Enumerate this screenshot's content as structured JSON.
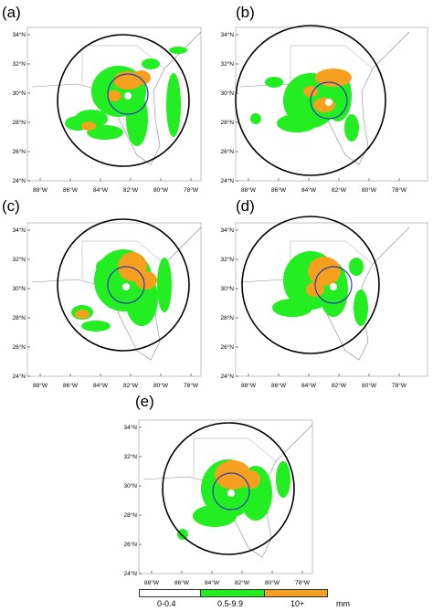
{
  "panels": [
    {
      "label": "(a)"
    },
    {
      "label": "(b)"
    },
    {
      "label": "(c)"
    },
    {
      "label": "(d)"
    },
    {
      "label": "(e)"
    }
  ],
  "lat_ticks": [
    "34°N",
    "32°N",
    "30°N",
    "28°N",
    "26°N",
    "24°N"
  ],
  "lon_ticks": [
    "88°W",
    "86°W",
    "84°W",
    "82°W",
    "80°W",
    "78°W"
  ],
  "legend": {
    "bins": [
      {
        "label": "0-0.4",
        "color": "#ffffff"
      },
      {
        "label": "0.5-9.9",
        "color": "#22ee22"
      },
      {
        "label": "10+",
        "color": "#f5a01e"
      }
    ],
    "unit": "mm"
  },
  "colors": {
    "light_rain": "#22ee22",
    "heavy_rain": "#f5a01e",
    "outer_circle": "#000000",
    "inner_circle": "#2b3fb0",
    "coast": "#888888"
  }
}
